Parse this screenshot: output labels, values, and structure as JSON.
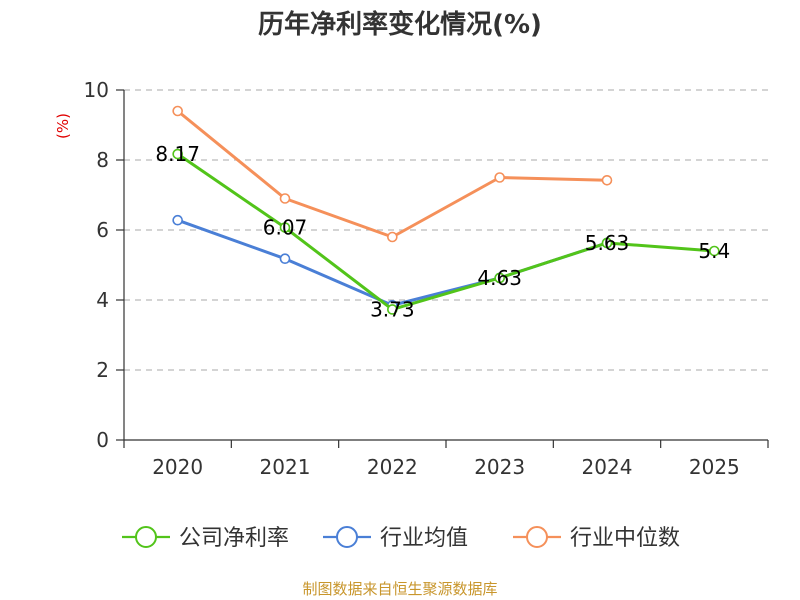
{
  "chart_data": {
    "type": "line",
    "title": "历年净利率变化情况(%)",
    "ylabel": "(%)",
    "xlabel": "",
    "categories": [
      "2020",
      "2021",
      "2022",
      "2023",
      "2024",
      "2025"
    ],
    "ylim": [
      0,
      10
    ],
    "yticks": [
      0,
      2,
      4,
      6,
      8,
      10
    ],
    "grid": true,
    "legend_position": "bottom",
    "series": [
      {
        "name": "公司净利率",
        "color": "#52c41a",
        "values": [
          8.17,
          6.07,
          3.73,
          4.63,
          5.63,
          5.4
        ],
        "labels": [
          "8.17",
          "6.07",
          "3.73",
          "4.63",
          "5.63",
          "5.4"
        ]
      },
      {
        "name": "行业均值",
        "color": "#4a7fd6",
        "values": [
          6.28,
          5.18,
          3.85,
          4.63,
          5.63,
          null
        ]
      },
      {
        "name": "行业中位数",
        "color": "#f5905a",
        "values": [
          9.4,
          6.9,
          5.8,
          7.5,
          7.42,
          null
        ]
      }
    ],
    "source": "制图数据来自恒生聚源数据库"
  }
}
